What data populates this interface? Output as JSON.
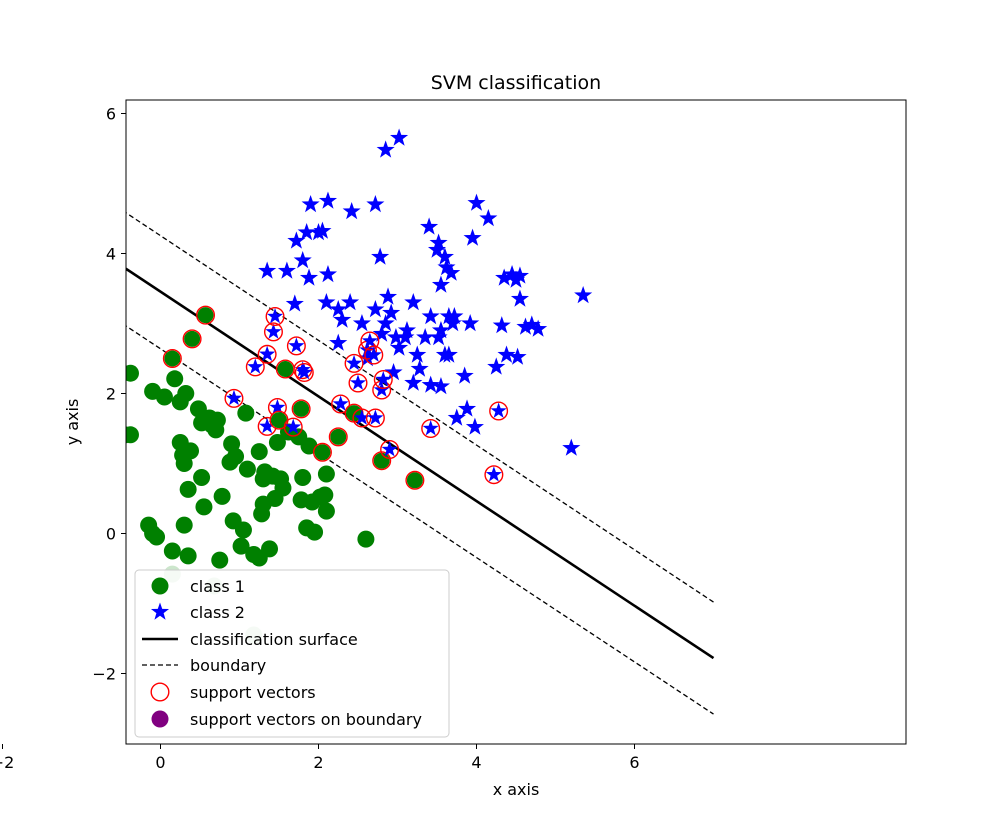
{
  "chart_data": {
    "type": "scatter",
    "title": "SVM classification",
    "xlabel": "x axis",
    "ylabel": "y axis",
    "xlim": [
      -2.4,
      7.4
    ],
    "ylim": [
      -3.0,
      6.2
    ],
    "xticks": [
      -2,
      0,
      2,
      4,
      6
    ],
    "xtick_labels": [
      "−2",
      "0",
      "2",
      "4",
      "6"
    ],
    "yticks": [
      -2,
      0,
      2,
      4,
      6
    ],
    "ytick_labels": [
      "−2",
      "0",
      "2",
      "4",
      "6"
    ],
    "grid": false,
    "legend_position": "bottom-left",
    "colors": {
      "class1": "#008000",
      "class2": "#0000ff",
      "surface": "#000000",
      "support": "#ff0000",
      "support_boundary": "#800080"
    },
    "series": [
      {
        "name": "class 1",
        "marker": "circle",
        "points": [
          [
            -1.55,
            1.28
          ],
          [
            -1.15,
            -0.03
          ],
          [
            -1.07,
            2.02
          ],
          [
            -1.0,
            1.22
          ],
          [
            -0.78,
            1.24
          ],
          [
            -0.78,
            0.95
          ],
          [
            -0.55,
            1.87
          ],
          [
            -0.45,
            1.41
          ],
          [
            -0.38,
            1.41
          ],
          [
            -0.38,
            2.29
          ],
          [
            -0.1,
            0.0
          ],
          [
            -0.15,
            0.12
          ],
          [
            -0.05,
            -0.05
          ],
          [
            -0.1,
            2.03
          ],
          [
            0.05,
            1.95
          ],
          [
            0.15,
            -0.25
          ],
          [
            0.18,
            2.21
          ],
          [
            0.25,
            1.88
          ],
          [
            0.25,
            1.3
          ],
          [
            0.28,
            1.12
          ],
          [
            0.3,
            1.0
          ],
          [
            0.3,
            0.12
          ],
          [
            0.32,
            2.0
          ],
          [
            0.35,
            -0.32
          ],
          [
            0.35,
            0.63
          ],
          [
            0.38,
            1.18
          ],
          [
            0.48,
            1.78
          ],
          [
            0.52,
            0.8
          ],
          [
            0.52,
            1.58
          ],
          [
            0.55,
            0.38
          ],
          [
            0.62,
            1.65
          ],
          [
            0.65,
            1.55
          ],
          [
            0.7,
            1.48
          ],
          [
            0.72,
            1.62
          ],
          [
            0.75,
            -0.38
          ],
          [
            0.78,
            0.53
          ],
          [
            0.88,
            1.02
          ],
          [
            0.9,
            1.28
          ],
          [
            0.92,
            0.18
          ],
          [
            0.95,
            1.1
          ],
          [
            1.02,
            -0.18
          ],
          [
            1.05,
            0.05
          ],
          [
            1.08,
            1.72
          ],
          [
            1.1,
            0.92
          ],
          [
            1.18,
            -0.3
          ],
          [
            1.25,
            1.17
          ],
          [
            1.25,
            -0.35
          ],
          [
            1.28,
            0.28
          ],
          [
            1.3,
            0.42
          ],
          [
            1.3,
            0.78
          ],
          [
            1.32,
            0.88
          ],
          [
            1.38,
            -0.22
          ],
          [
            1.42,
            0.82
          ],
          [
            1.45,
            0.5
          ],
          [
            1.48,
            1.3
          ],
          [
            1.52,
            0.78
          ],
          [
            1.55,
            0.65
          ],
          [
            1.62,
            1.45
          ],
          [
            1.75,
            1.38
          ],
          [
            1.78,
            0.48
          ],
          [
            1.8,
            0.8
          ],
          [
            1.85,
            0.08
          ],
          [
            1.88,
            1.25
          ],
          [
            1.92,
            0.45
          ],
          [
            1.95,
            0.02
          ],
          [
            2.02,
            0.52
          ],
          [
            2.08,
            0.55
          ],
          [
            2.1,
            0.85
          ],
          [
            2.1,
            0.32
          ],
          [
            2.6,
            -0.08
          ]
        ]
      },
      {
        "name": "class 2",
        "marker": "star",
        "points": [
          [
            1.35,
            3.75
          ],
          [
            1.6,
            3.75
          ],
          [
            1.7,
            3.28
          ],
          [
            1.72,
            4.18
          ],
          [
            1.8,
            3.9
          ],
          [
            1.85,
            4.3
          ],
          [
            1.88,
            3.65
          ],
          [
            1.9,
            4.7
          ],
          [
            2.0,
            4.3
          ],
          [
            2.05,
            4.32
          ],
          [
            2.1,
            3.3
          ],
          [
            2.12,
            3.7
          ],
          [
            2.12,
            4.75
          ],
          [
            2.25,
            3.2
          ],
          [
            2.25,
            2.72
          ],
          [
            2.3,
            3.05
          ],
          [
            2.4,
            3.3
          ],
          [
            2.42,
            4.6
          ],
          [
            2.55,
            3.0
          ],
          [
            2.62,
            2.5
          ],
          [
            2.72,
            4.7
          ],
          [
            2.72,
            3.2
          ],
          [
            2.78,
            3.95
          ],
          [
            2.8,
            2.85
          ],
          [
            2.85,
            3.0
          ],
          [
            2.88,
            3.38
          ],
          [
            2.92,
            3.15
          ],
          [
            2.95,
            2.3
          ],
          [
            2.98,
            2.8
          ],
          [
            3.02,
            2.65
          ],
          [
            3.1,
            2.8
          ],
          [
            3.12,
            2.9
          ],
          [
            3.2,
            2.15
          ],
          [
            3.2,
            3.3
          ],
          [
            3.25,
            2.55
          ],
          [
            3.28,
            2.35
          ],
          [
            3.35,
            2.8
          ],
          [
            3.4,
            4.38
          ],
          [
            3.42,
            3.1
          ],
          [
            3.42,
            2.12
          ],
          [
            3.5,
            4.05
          ],
          [
            3.52,
            4.15
          ],
          [
            3.52,
            2.8
          ],
          [
            3.55,
            3.55
          ],
          [
            3.55,
            2.1
          ],
          [
            3.55,
            2.9
          ],
          [
            3.6,
            2.55
          ],
          [
            3.6,
            3.95
          ],
          [
            3.62,
            3.8
          ],
          [
            3.65,
            2.55
          ],
          [
            3.65,
            3.1
          ],
          [
            3.68,
            3.72
          ],
          [
            3.7,
            3.0
          ],
          [
            3.72,
            3.1
          ],
          [
            3.75,
            1.65
          ],
          [
            3.85,
            2.25
          ],
          [
            3.88,
            1.78
          ],
          [
            3.92,
            3.0
          ],
          [
            3.95,
            4.22
          ],
          [
            3.98,
            1.52
          ],
          [
            4.0,
            4.72
          ],
          [
            4.15,
            4.5
          ],
          [
            4.25,
            2.38
          ],
          [
            4.32,
            2.97
          ],
          [
            4.35,
            3.65
          ],
          [
            4.38,
            2.55
          ],
          [
            4.45,
            3.7
          ],
          [
            4.5,
            3.62
          ],
          [
            4.52,
            2.52
          ],
          [
            4.55,
            3.35
          ],
          [
            4.55,
            3.68
          ],
          [
            4.62,
            2.95
          ],
          [
            4.7,
            2.98
          ],
          [
            4.78,
            2.92
          ],
          [
            2.85,
            5.48
          ],
          [
            3.02,
            5.65
          ],
          [
            5.2,
            1.22
          ],
          [
            5.35,
            3.4
          ]
        ]
      },
      {
        "name": "support vectors",
        "marker": "open-circle",
        "points": [
          [
            0.15,
            2.5
          ],
          [
            0.4,
            2.78
          ],
          [
            0.57,
            3.12
          ],
          [
            0.93,
            1.93
          ],
          [
            1.2,
            2.38
          ],
          [
            1.35,
            2.56
          ],
          [
            1.35,
            1.53
          ],
          [
            1.43,
            2.88
          ],
          [
            1.45,
            3.1
          ],
          [
            1.48,
            1.8
          ],
          [
            1.5,
            1.62
          ],
          [
            1.58,
            2.35
          ],
          [
            1.68,
            1.52
          ],
          [
            1.72,
            2.68
          ],
          [
            1.78,
            1.78
          ],
          [
            1.8,
            2.34
          ],
          [
            1.82,
            2.3
          ],
          [
            2.05,
            1.16
          ],
          [
            2.25,
            1.38
          ],
          [
            2.28,
            1.85
          ],
          [
            2.45,
            2.43
          ],
          [
            2.45,
            1.72
          ],
          [
            2.5,
            2.15
          ],
          [
            2.55,
            1.65
          ],
          [
            2.62,
            2.62
          ],
          [
            2.65,
            2.75
          ],
          [
            2.7,
            2.55
          ],
          [
            2.72,
            1.65
          ],
          [
            2.8,
            1.04
          ],
          [
            2.8,
            2.05
          ],
          [
            2.82,
            2.2
          ],
          [
            2.9,
            1.2
          ],
          [
            3.22,
            0.76
          ],
          [
            3.42,
            1.5
          ],
          [
            4.22,
            0.84
          ],
          [
            4.28,
            1.75
          ]
        ]
      },
      {
        "name": "support vectors on boundary",
        "marker": "filled-circle",
        "points": [
          [
            0.15,
            -0.58
          ],
          [
            0.68,
            -0.75
          ],
          [
            -0.62,
            -1.35
          ],
          [
            1.18,
            -1.45
          ]
        ]
      }
    ],
    "lines": [
      {
        "name": "classification surface",
        "style": "solid",
        "x": [
          -2,
          7
        ],
        "y": [
          4.95,
          -1.78
        ]
      },
      {
        "name": "boundary",
        "style": "dashed",
        "x": [
          -2,
          7
        ],
        "y": [
          5.75,
          -0.98
        ]
      },
      {
        "name": "boundary",
        "style": "dashed",
        "x": [
          -2,
          7
        ],
        "y": [
          4.13,
          -2.58
        ]
      }
    ],
    "legend": [
      {
        "label": "class 1",
        "marker": "circle",
        "color": "#008000"
      },
      {
        "label": "class 2",
        "marker": "star",
        "color": "#0000ff"
      },
      {
        "label": "classification surface",
        "marker": "solid-line",
        "color": "#000000"
      },
      {
        "label": "boundary",
        "marker": "dashed-line",
        "color": "#000000"
      },
      {
        "label": "support vectors",
        "marker": "open-circle",
        "color": "#ff0000"
      },
      {
        "label": "support vectors on boundary",
        "marker": "filled-circle",
        "color": "#800080"
      }
    ]
  }
}
